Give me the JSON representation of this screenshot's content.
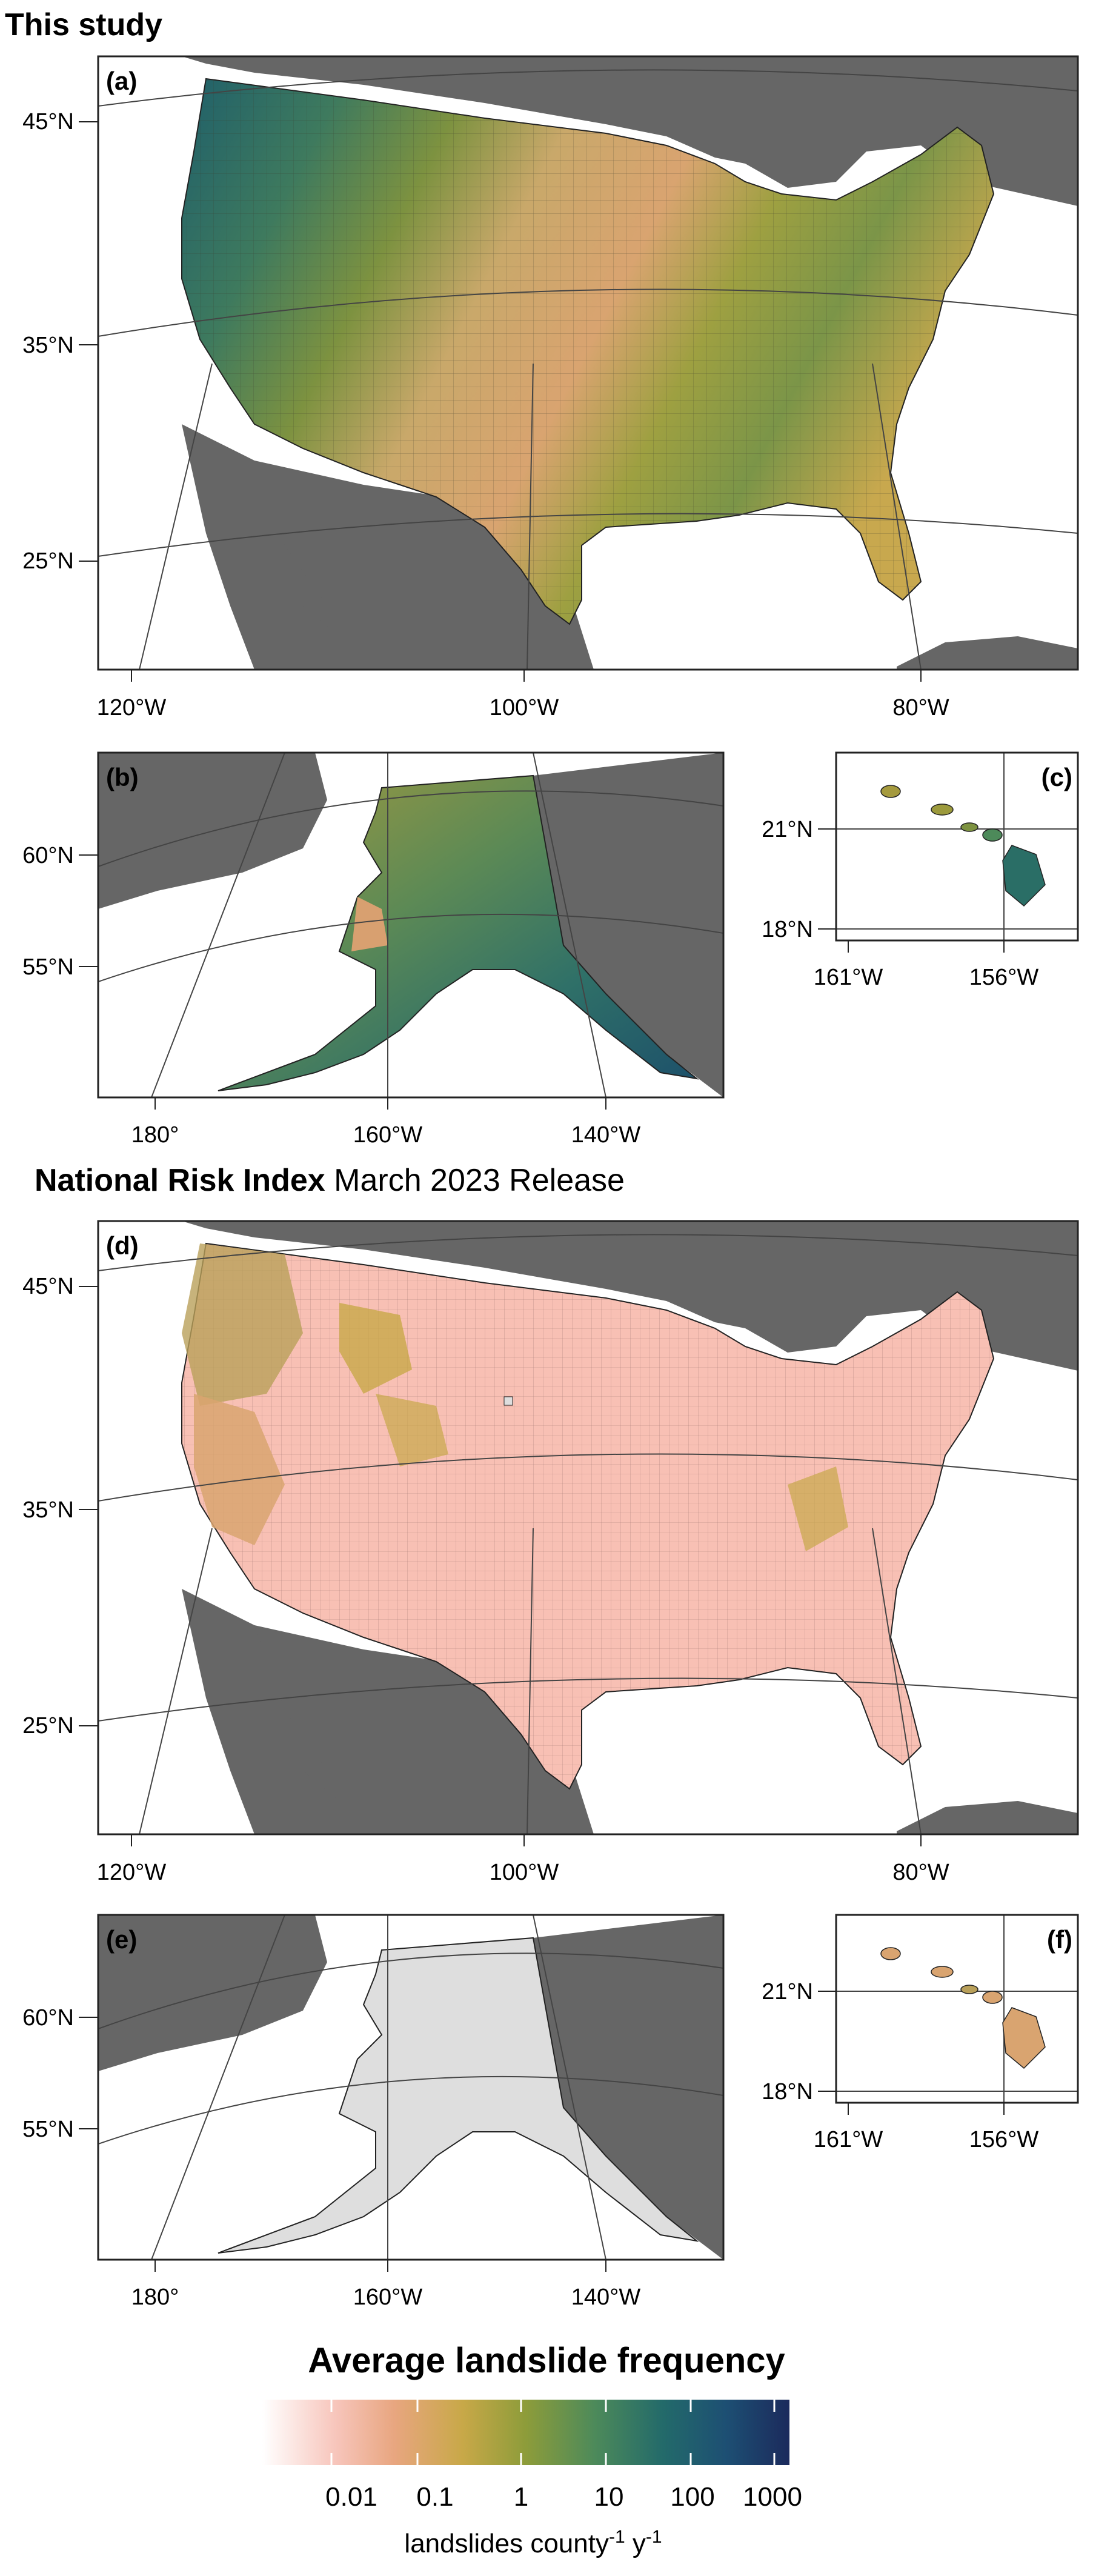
{
  "section_1": {
    "title": "This study"
  },
  "section_2": {
    "title_bold": "National Risk Index",
    "title_rest": " March 2023 Release"
  },
  "panels": {
    "a": {
      "label": "(a)",
      "lat_ticks": [
        "45°N",
        "35°N",
        "25°N"
      ],
      "lon_ticks": [
        "120°W",
        "100°W",
        "80°W"
      ]
    },
    "b": {
      "label": "(b)",
      "lat_ticks": [
        "60°N",
        "55°N"
      ],
      "lon_ticks": [
        "180°",
        "160°W",
        "140°W"
      ]
    },
    "c": {
      "label": "(c)",
      "lat_ticks": [
        "21°N",
        "18°N"
      ],
      "lon_ticks": [
        "161°W",
        "156°W"
      ]
    },
    "d": {
      "label": "(d)",
      "lat_ticks": [
        "45°N",
        "35°N",
        "25°N"
      ],
      "lon_ticks": [
        "120°W",
        "100°W",
        "80°W"
      ]
    },
    "e": {
      "label": "(e)",
      "lat_ticks": [
        "60°N",
        "55°N"
      ],
      "lon_ticks": [
        "180°",
        "160°W",
        "140°W"
      ]
    },
    "f": {
      "label": "(f)",
      "lat_ticks": [
        "21°N",
        "18°N"
      ],
      "lon_ticks": [
        "161°W",
        "156°W"
      ]
    }
  },
  "legend": {
    "title": "Average landslide frequency",
    "ticks": [
      "0.01",
      "0.1",
      "1",
      "10",
      "100",
      "1000"
    ],
    "unit_parts": [
      "landslides county",
      "-1",
      " y",
      "-1"
    ],
    "gradient_colors": [
      "#ffffff",
      "#f7c5bb",
      "#e8a680",
      "#c8a848",
      "#8d9c3a",
      "#4d8a5a",
      "#236a6a",
      "#1d4f73",
      "#1b2a5c"
    ]
  },
  "colors": {
    "land_gray": "#666666",
    "frame": "#222222",
    "graticule": "#444444",
    "nri_pink": "#f8c0b4",
    "nri_missing": "#dedede"
  }
}
